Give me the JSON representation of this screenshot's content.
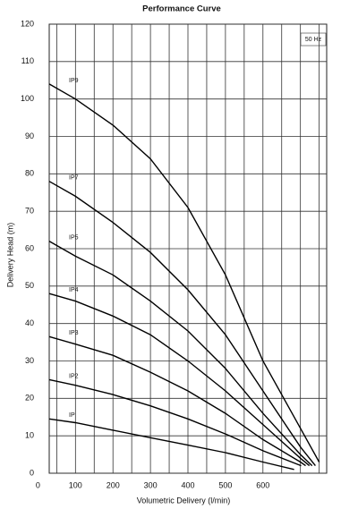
{
  "chart_data": {
    "type": "line",
    "title": "Performance Curve",
    "x_label": "Volumetric Delivery (l/min)",
    "y_label": "Delivery Head (m)",
    "annotation": "50 Hz",
    "xlim": [
      30,
      770
    ],
    "xticks": [
      0,
      100,
      200,
      300,
      400,
      500,
      600
    ],
    "ylim": [
      0,
      120
    ],
    "yticks": [
      0,
      10,
      20,
      30,
      40,
      50,
      60,
      70,
      80,
      90,
      100,
      110,
      120
    ],
    "grid": true,
    "color": "#000000",
    "series": [
      {
        "name": "IP9",
        "x": [
          30,
          100,
          200,
          300,
          400,
          500,
          600,
          700,
          750
        ],
        "values": [
          104,
          100,
          93,
          84,
          71,
          53,
          30,
          12,
          3
        ]
      },
      {
        "name": "IP7",
        "x": [
          30,
          100,
          200,
          300,
          400,
          500,
          600,
          700,
          740
        ],
        "values": [
          78,
          74,
          67,
          59,
          49,
          37,
          22,
          7,
          2
        ]
      },
      {
        "name": "IP5",
        "x": [
          30,
          100,
          200,
          300,
          400,
          500,
          600,
          700,
          731
        ],
        "values": [
          62,
          58,
          53,
          46,
          38,
          28,
          16,
          5,
          2
        ]
      },
      {
        "name": "IP4",
        "x": [
          30,
          100,
          200,
          300,
          400,
          500,
          600,
          700,
          724
        ],
        "values": [
          48,
          46,
          42,
          37,
          30,
          22,
          13,
          4,
          2
        ]
      },
      {
        "name": "IP3",
        "x": [
          30,
          100,
          200,
          300,
          400,
          500,
          600,
          700,
          714
        ],
        "values": [
          36.5,
          34.5,
          31.5,
          27,
          22,
          16,
          9,
          3,
          2
        ]
      },
      {
        "name": "IP2",
        "x": [
          30,
          100,
          200,
          300,
          400,
          500,
          600,
          702
        ],
        "values": [
          25,
          23.5,
          21,
          18,
          14.5,
          10.5,
          6,
          2
        ]
      },
      {
        "name": "IP",
        "x": [
          30,
          100,
          200,
          300,
          400,
          500,
          600,
          683
        ],
        "values": [
          14.5,
          13.5,
          11.5,
          9.5,
          7.5,
          5.5,
          3,
          1
        ]
      }
    ]
  }
}
